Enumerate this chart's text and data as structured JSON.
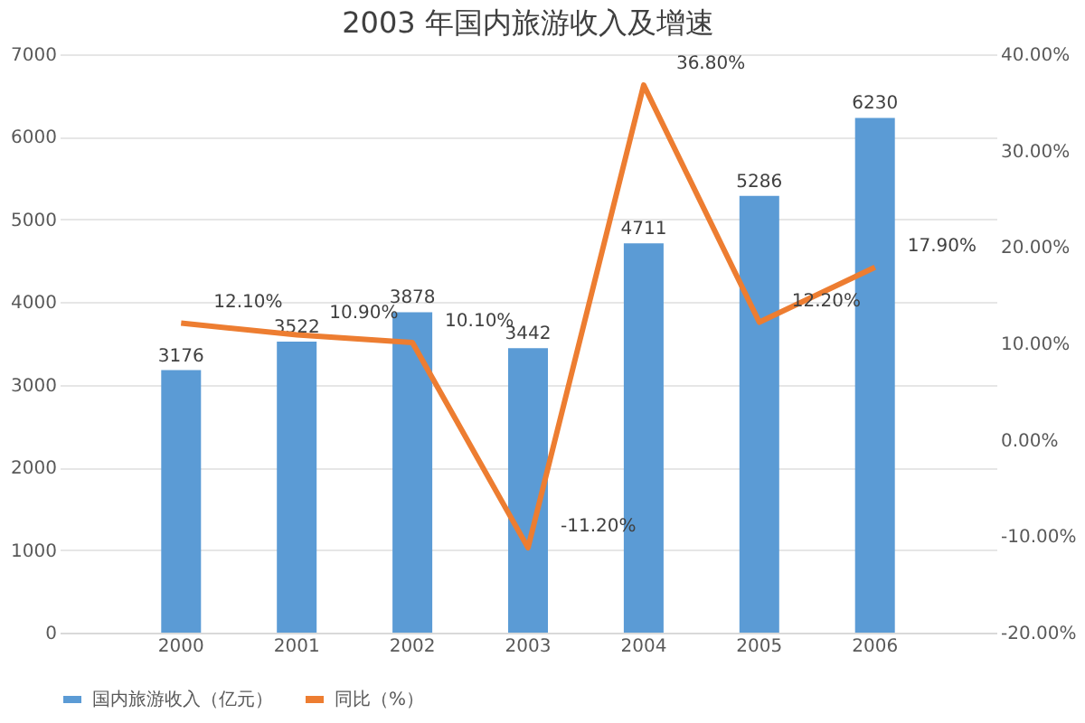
{
  "chart_data": {
    "type": "bar",
    "title": "2003 年国内旅游收入及增速",
    "categories": [
      "2000",
      "2001",
      "2002",
      "2003",
      "2004",
      "2005",
      "2006"
    ],
    "series": [
      {
        "name": "国内旅游收入（亿元）",
        "color": "#5b9bd5",
        "values": [
          3176,
          3522,
          3878,
          3442,
          4711,
          5286,
          6230
        ],
        "value_labels": [
          "3176",
          "3522",
          "3878",
          "3442",
          "4711",
          "5286",
          "6230"
        ]
      },
      {
        "name": "同比（%）",
        "type": "line",
        "axis": "y2",
        "color": "#ed7d31",
        "marker": "none",
        "values": [
          12.1,
          10.9,
          10.1,
          -11.2,
          36.8,
          12.2,
          17.9
        ],
        "value_labels": [
          "12.10%",
          "10.90%",
          "10.10%",
          "-11.20%",
          "36.80%",
          "12.20%",
          "17.90%"
        ]
      }
    ],
    "ylim": [
      0,
      7000
    ],
    "yticks": [
      0,
      1000,
      2000,
      3000,
      4000,
      5000,
      6000,
      7000
    ],
    "y2lim": [
      -20,
      40
    ],
    "y2ticks": [
      {
        "value": -20,
        "label": "-20.00%"
      },
      {
        "value": -10,
        "label": "-10.00%"
      },
      {
        "value": 0,
        "label": "0.00%"
      },
      {
        "value": 10,
        "label": "10.00%"
      },
      {
        "value": 20,
        "label": "20.00%"
      },
      {
        "value": 30,
        "label": "30.00%"
      },
      {
        "value": 40,
        "label": "40.00%"
      }
    ],
    "grid": "y",
    "legend": "bottom"
  }
}
